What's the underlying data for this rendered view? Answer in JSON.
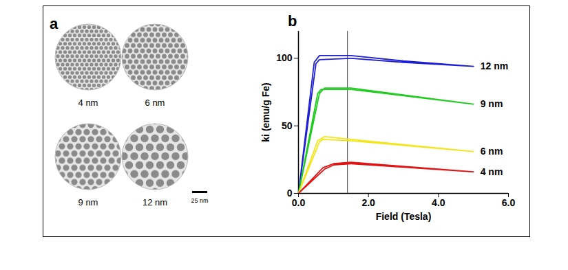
{
  "panel_a": {
    "panel_label": "a",
    "images": [
      {
        "label": "4 nm"
      },
      {
        "label": "6 nm"
      },
      {
        "label": "9 nm"
      },
      {
        "label": "12 nm"
      }
    ],
    "scale_bar": "25 nm"
  },
  "chart_data": {
    "type": "line",
    "panel_label": "b",
    "xlabel": "Field (Tesla)",
    "ylabel": "ki (emu/g Fe)",
    "xlim": [
      0,
      6
    ],
    "xticks": [
      0,
      2,
      4,
      6
    ],
    "ylim": [
      0,
      120
    ],
    "yticks": [
      0,
      50,
      100
    ],
    "reference_line_x": 1.4,
    "series": [
      {
        "name": "12 nm",
        "color": "#1f1fd6",
        "x": [
          0,
          0.45,
          0.6,
          1.5,
          3,
          5,
          3,
          1.5,
          0.6,
          0.5,
          0
        ],
        "values": [
          0,
          97,
          102,
          102,
          98,
          94,
          97,
          100,
          99,
          96,
          0
        ]
      },
      {
        "name": "9 nm",
        "color": "#1fcc1f",
        "x": [
          0,
          0.6,
          0.75,
          1.5,
          5,
          1.5,
          0.65,
          0.55,
          0
        ],
        "values": [
          0,
          74,
          78,
          78,
          66,
          77,
          77,
          74,
          0
        ]
      },
      {
        "name": "6 nm",
        "color": "#f2e61a",
        "x": [
          0,
          0.55,
          0.75,
          1.5,
          5,
          1.5,
          0.7,
          0.6,
          0
        ],
        "values": [
          0,
          39,
          42,
          40,
          31,
          39,
          40,
          38,
          0
        ]
      },
      {
        "name": "4 nm",
        "color": "#e01414",
        "x": [
          0,
          0.7,
          1.0,
          1.5,
          5,
          1.5,
          1.0,
          0.75,
          0
        ],
        "values": [
          0,
          19,
          22,
          23,
          16,
          22,
          21,
          18,
          0
        ]
      }
    ]
  }
}
